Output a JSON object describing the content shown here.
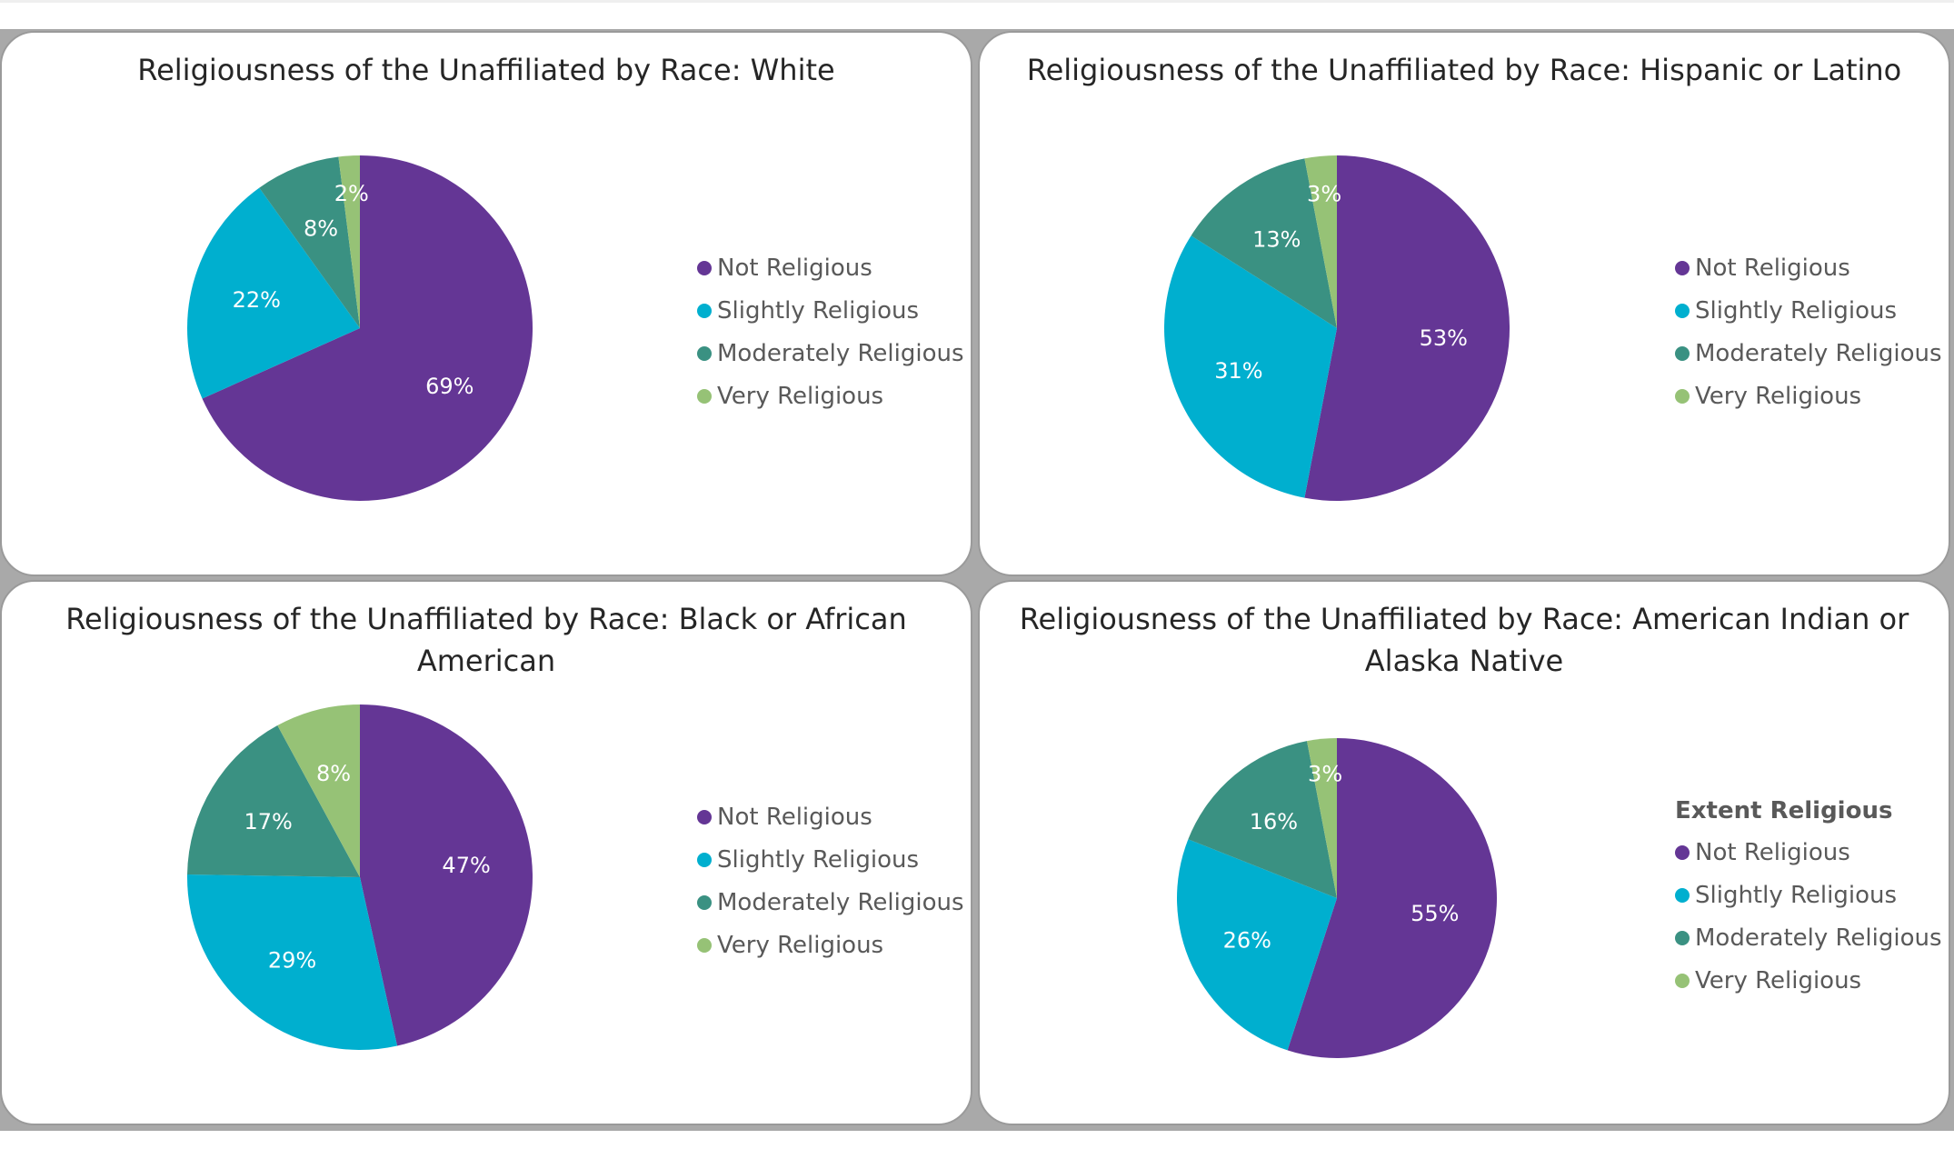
{
  "colors": {
    "Not Religious": "#643695",
    "Slightly Religious": "#00afcf",
    "Moderately Religious": "#3a9182",
    "Very Religious": "#96c276"
  },
  "chart_data": [
    {
      "type": "pie",
      "title": "Religiousness of the Unaffiliated by Race: White",
      "categories": [
        "Not Religious",
        "Slightly Religious",
        "Moderately Religious",
        "Very Religious"
      ],
      "values": [
        69,
        22,
        8,
        2
      ],
      "labels": [
        "69%",
        "22%",
        "8%",
        "2%"
      ],
      "legend_title": "",
      "legend_position": "right"
    },
    {
      "type": "pie",
      "title": "Religiousness of the Unaffiliated by Race: Hispanic or Latino",
      "categories": [
        "Not Religious",
        "Slightly Religious",
        "Moderately Religious",
        "Very Religious"
      ],
      "values": [
        53,
        31,
        13,
        3
      ],
      "labels": [
        "53%",
        "31%",
        "13%",
        "3%"
      ],
      "legend_title": "",
      "legend_position": "right"
    },
    {
      "type": "pie",
      "title": "Religiousness of the Unaffiliated by Race: Black or African American",
      "categories": [
        "Not Religious",
        "Slightly Religious",
        "Moderately Religious",
        "Very Religious"
      ],
      "values": [
        47,
        29,
        17,
        8
      ],
      "labels": [
        "47%",
        "29%",
        "17%",
        "8%"
      ],
      "legend_title": "",
      "legend_position": "right"
    },
    {
      "type": "pie",
      "title": "Religiousness of the Unaffiliated by Race: American Indian or Alaska Native",
      "categories": [
        "Not Religious",
        "Slightly Religious",
        "Moderately Religious",
        "Very Religious"
      ],
      "values": [
        55,
        26,
        16,
        3
      ],
      "labels": [
        "55%",
        "26%",
        "16%",
        "3%"
      ],
      "legend_title": "Extent Religious",
      "legend_position": "right"
    }
  ]
}
